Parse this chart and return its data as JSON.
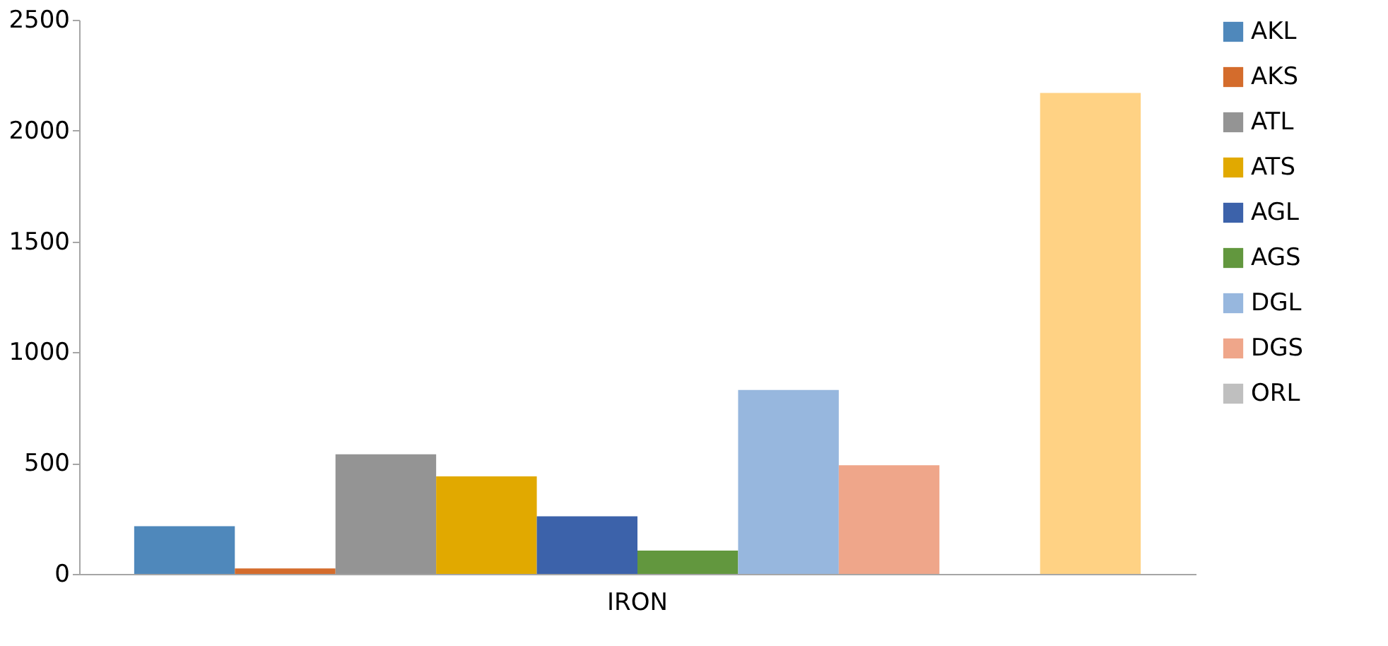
{
  "chart_data": {
    "type": "bar",
    "categories": [
      "IRON"
    ],
    "series": [
      {
        "name": "AKL",
        "color": "#4f88bb",
        "values": [
          215
        ]
      },
      {
        "name": "AKS",
        "color": "#d46c2c",
        "values": [
          25
        ]
      },
      {
        "name": "ATL",
        "color": "#949494",
        "values": [
          540
        ]
      },
      {
        "name": "ATS",
        "color": "#e1a900",
        "values": [
          440
        ]
      },
      {
        "name": "AGL",
        "color": "#3c62aa",
        "values": [
          260
        ]
      },
      {
        "name": "AGS",
        "color": "#62973e",
        "values": [
          105
        ]
      },
      {
        "name": "DGL",
        "color": "#97b7de",
        "values": [
          830
        ]
      },
      {
        "name": "DGS",
        "color": "#efa68a",
        "values": [
          490
        ]
      },
      {
        "name": "ORL",
        "color": "#bfbfbf",
        "values": [
          0
        ]
      },
      {
        "color": "#ffd284",
        "values": [
          2170
        ]
      }
    ],
    "ylim": [
      0,
      2500
    ],
    "yticks": [
      0,
      500,
      1000,
      1500,
      2000,
      2500
    ],
    "grid": false,
    "legend": "right"
  }
}
